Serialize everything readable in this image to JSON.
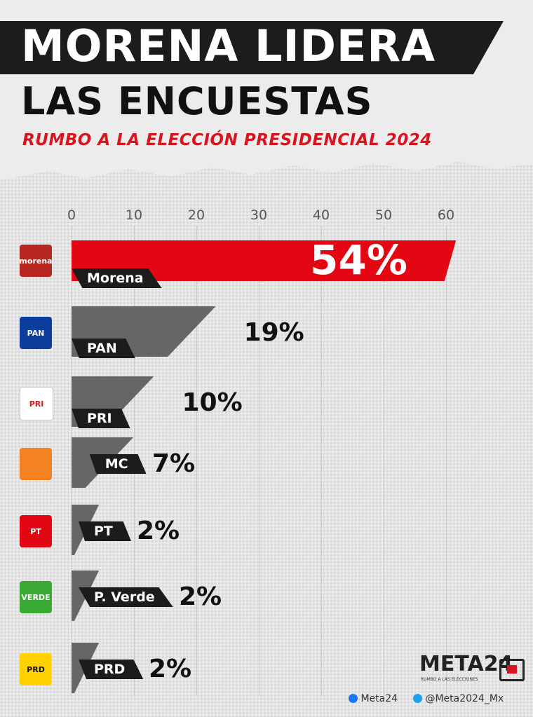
{
  "header": {
    "title_line1": "MORENA LIDERA",
    "title_line2": "LAS ENCUESTAS",
    "subtitle": "RUMBO A LA ELECCIÓN PRESIDENCIAL 2024"
  },
  "chart_data": {
    "type": "bar",
    "orientation": "horizontal",
    "categories": [
      "Morena",
      "PAN",
      "PRI",
      "MC",
      "PT",
      "P. Verde",
      "PRD"
    ],
    "values": [
      54,
      19,
      10,
      7,
      2,
      2,
      2
    ],
    "data_labels": [
      "54%",
      "19%",
      "10%",
      "7%",
      "2%",
      "2%",
      "2%"
    ],
    "xlim": [
      0,
      60
    ],
    "ticks": [
      "0",
      "10",
      "20",
      "30",
      "40",
      "50",
      "60"
    ],
    "grid": true,
    "colors": {
      "Morena": "#e30613",
      "others": "#666666"
    }
  },
  "logos": [
    {
      "name": "morena-logo",
      "text": "morena",
      "color": "#b5271f"
    },
    {
      "name": "pan-logo",
      "text": "PAN",
      "color": "#0b3d9c"
    },
    {
      "name": "pri-logo",
      "text": "PRI",
      "color": "#ffffff"
    },
    {
      "name": "mc-logo",
      "text": "",
      "color": "#f58220"
    },
    {
      "name": "pt-logo",
      "text": "PT",
      "color": "#e30613"
    },
    {
      "name": "verde-logo",
      "text": "VERDE",
      "color": "#3aaa35"
    },
    {
      "name": "prd-logo",
      "text": "PRD",
      "color": "#ffd200"
    }
  ],
  "footer": {
    "brand": "META24",
    "brand_tagline": "RUMBO A LAS ELECCIONES",
    "facebook": "Meta24",
    "twitter": "@Meta2024_Mx"
  }
}
